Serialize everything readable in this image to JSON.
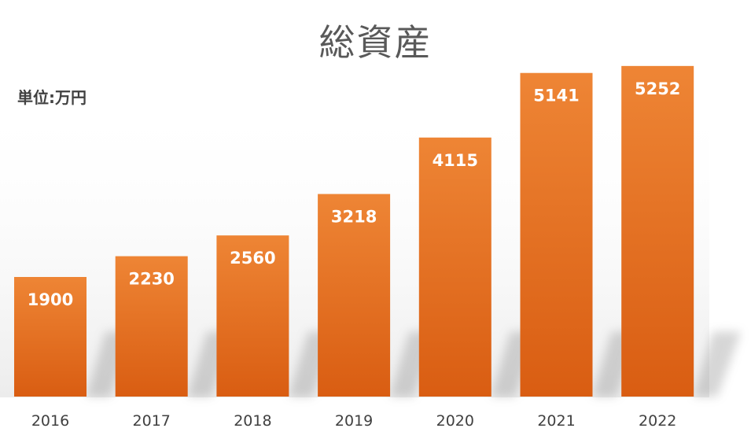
{
  "chart_data": {
    "type": "bar",
    "title": "総資産",
    "unit_label": "単位:万円",
    "categories": [
      "2016",
      "2017",
      "2018",
      "2019",
      "2020",
      "2021",
      "2022"
    ],
    "values": [
      1900,
      2230,
      2560,
      3218,
      4115,
      5141,
      5252
    ],
    "data_labels": [
      "1900",
      "2230",
      "2560",
      "3218",
      "4115",
      "5141",
      "5252"
    ],
    "ylim": [
      0,
      5300
    ],
    "grid": false,
    "legend": "none",
    "colors": {
      "bar_top": "#EE8535",
      "bar_bottom": "#D95D12",
      "data_label": "#ffffff",
      "tick_label": "#404040",
      "title": "#595959"
    }
  }
}
